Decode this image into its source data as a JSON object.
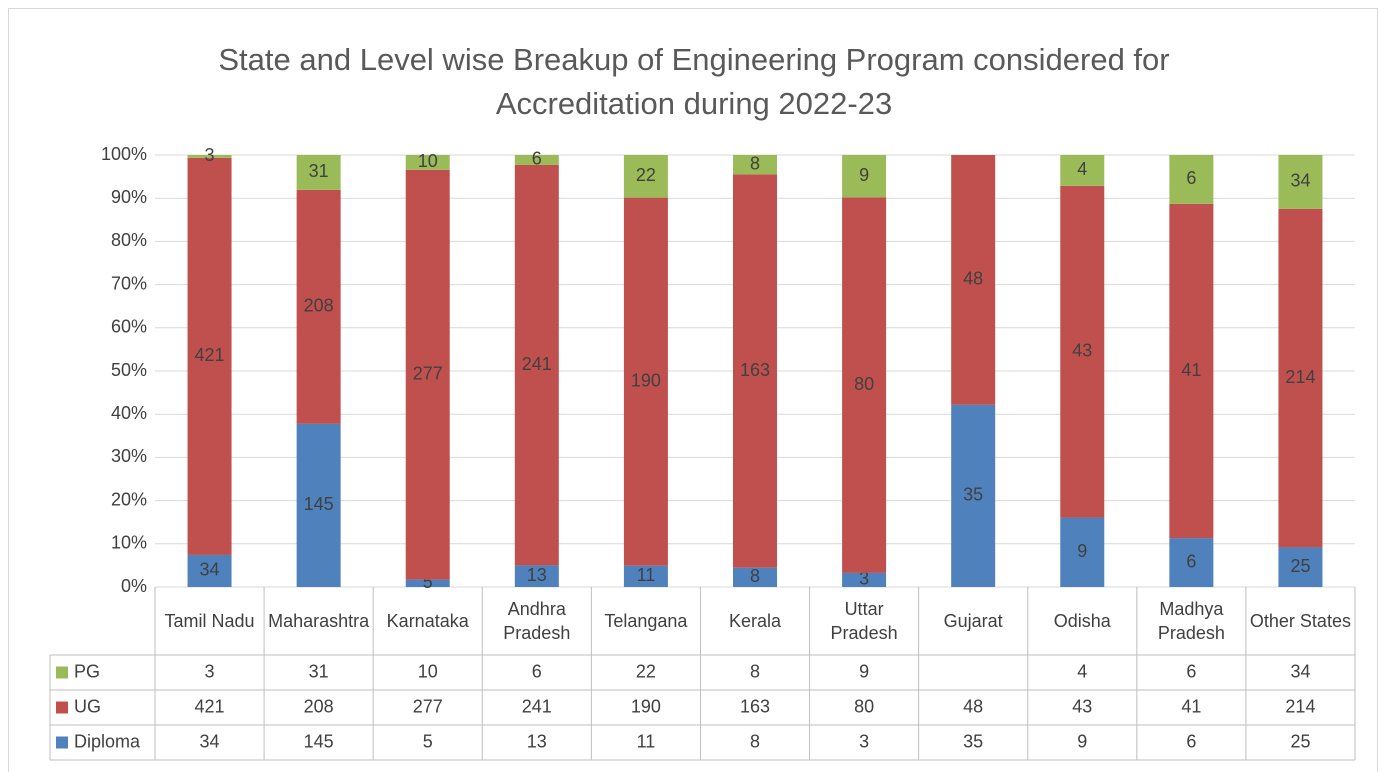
{
  "chart_data": {
    "type": "stacked_percent_bar",
    "title": "State and Level wise Breakup of Engineering Program considered for Accreditation during 2022-23",
    "categories": [
      "Tamil Nadu",
      "Maharashtra",
      "Karnataka",
      "Andhra Pradesh",
      "Telangana",
      "Kerala",
      "Uttar Pradesh",
      "Gujarat",
      "Odisha",
      "Madhya Pradesh",
      "Other States"
    ],
    "series": [
      {
        "name": "Diploma",
        "color": "#4f81bd",
        "values": [
          34,
          145,
          5,
          13,
          11,
          8,
          3,
          35,
          9,
          6,
          25
        ]
      },
      {
        "name": "UG",
        "color": "#c0504d",
        "values": [
          421,
          208,
          277,
          241,
          190,
          163,
          80,
          48,
          43,
          41,
          214
        ]
      },
      {
        "name": "PG",
        "color": "#9bbb59",
        "values": [
          3,
          31,
          10,
          6,
          22,
          8,
          9,
          null,
          4,
          6,
          34
        ]
      }
    ],
    "ylim": [
      0,
      100
    ],
    "yticks": [
      {
        "value": 0,
        "label": "0%"
      },
      {
        "value": 10,
        "label": "10%"
      },
      {
        "value": 20,
        "label": "20%"
      },
      {
        "value": 30,
        "label": "30%"
      },
      {
        "value": 40,
        "label": "40%"
      },
      {
        "value": 50,
        "label": "50%"
      },
      {
        "value": 60,
        "label": "60%"
      },
      {
        "value": 70,
        "label": "70%"
      },
      {
        "value": 80,
        "label": "80%"
      },
      {
        "value": 90,
        "label": "90%"
      },
      {
        "value": 100,
        "label": "100%"
      }
    ],
    "grid": true
  }
}
